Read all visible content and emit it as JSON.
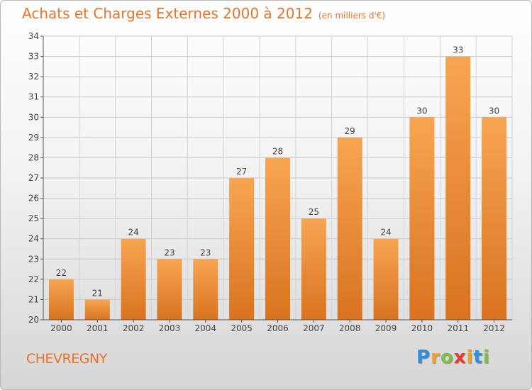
{
  "header": {
    "title": "Achats et Charges Externes 2000 à 2012",
    "subtitle": "(en milliers d'€)"
  },
  "footer": {
    "city": "CHEVREGNY",
    "logo": {
      "letters": [
        "P",
        "r",
        "o",
        "x",
        "i",
        "t",
        "i"
      ],
      "colors": [
        "#2f8fd8",
        "#f0a02a",
        "#7cc242",
        "#e63b2e",
        "#f0a02a",
        "#2f8fd8",
        "#7cc242"
      ]
    }
  },
  "chart_data": {
    "type": "bar",
    "categories": [
      "2000",
      "2001",
      "2002",
      "2003",
      "2004",
      "2005",
      "2006",
      "2007",
      "2008",
      "2009",
      "2010",
      "2011",
      "2012"
    ],
    "values": [
      22,
      21,
      24,
      23,
      23,
      27,
      28,
      25,
      29,
      24,
      30,
      33,
      30
    ],
    "ylim": [
      20,
      34
    ],
    "yticks": [
      20,
      21,
      22,
      23,
      24,
      25,
      26,
      27,
      28,
      29,
      30,
      31,
      32,
      33,
      34
    ],
    "grid": true,
    "bar_color_top": "#f7a552",
    "bar_color_bottom": "#d9731f",
    "legend": "none"
  }
}
